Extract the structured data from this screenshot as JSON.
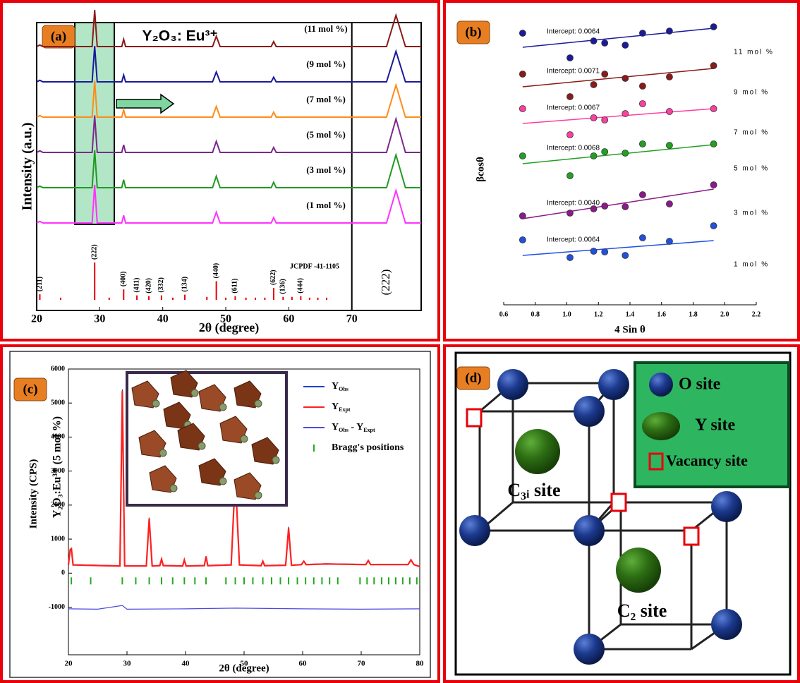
{
  "chart_data": [
    {
      "type": "line",
      "panel_label": "(a)",
      "title": "Y₂O₃: Eu³⁺",
      "xlabel": "2θ (degree)",
      "ylabel": "Intensity (a.u.)",
      "xlim": [
        20,
        81
      ],
      "xticks": [
        20,
        30,
        40,
        50,
        60,
        70
      ],
      "zoom_label": "(222)",
      "x": [
        20,
        20.5,
        21,
        28.8,
        29.2,
        29.6,
        33.5,
        33.8,
        34.1,
        47.9,
        48.5,
        49.1,
        57.2,
        57.6,
        58.0,
        70,
        75.5,
        77,
        78.5,
        81
      ],
      "series": [
        {
          "name": "(1 mol %)",
          "color": "#ff33ff",
          "values": [
            0,
            4,
            0,
            0,
            100,
            0,
            0,
            20,
            0,
            0,
            28,
            0,
            0,
            14,
            0,
            0,
            0,
            85,
            0,
            0
          ]
        },
        {
          "name": "(3 mol %)",
          "color": "#229922",
          "values": [
            0,
            4,
            0,
            0,
            98,
            0,
            0,
            21,
            0,
            0,
            30,
            0,
            0,
            14,
            0,
            0,
            0,
            86,
            0,
            0
          ]
        },
        {
          "name": "(5 mol %)",
          "color": "#7a2a8a",
          "values": [
            0,
            4,
            0,
            0,
            97,
            0,
            0,
            20,
            0,
            0,
            29,
            0,
            0,
            13,
            0,
            0,
            0,
            88,
            0,
            0
          ]
        },
        {
          "name": "(7 mol %)",
          "color": "#ff8c1a",
          "values": [
            0,
            4,
            0,
            0,
            95,
            0,
            0,
            19,
            0,
            0,
            28,
            0,
            0,
            13,
            0,
            0,
            0,
            84,
            0,
            0
          ]
        },
        {
          "name": "(9 mol %)",
          "color": "#1a1a99",
          "values": [
            0,
            4,
            0,
            0,
            94,
            0,
            0,
            18,
            0,
            0,
            26,
            0,
            0,
            12,
            0,
            0,
            0,
            80,
            0,
            0
          ]
        },
        {
          "name": "(11 mol %)",
          "color": "#8b1a1a",
          "values": [
            0,
            4,
            0,
            0,
            96,
            0,
            0,
            19,
            0,
            0,
            27,
            0,
            0,
            13,
            0,
            0,
            0,
            82,
            0,
            0
          ]
        }
      ],
      "reference": {
        "name": "JCPDF -41-1105",
        "color": "#e8000b",
        "x": [
          20.5,
          23.8,
          29.2,
          31.5,
          33.8,
          35.9,
          37.8,
          39.8,
          41.6,
          43.5,
          47.0,
          48.5,
          50.0,
          51.5,
          53.2,
          54.7,
          56.2,
          57.6,
          59.1,
          60.5,
          61.9,
          63.3,
          64.6,
          66.0
        ],
        "values": [
          15,
          6,
          100,
          6,
          28,
          12,
          10,
          12,
          6,
          14,
          8,
          50,
          6,
          10,
          6,
          6,
          6,
          32,
          8,
          8,
          10,
          6,
          6,
          6
        ],
        "labels": [
          "(211)",
          null,
          "(222)",
          null,
          "(400)",
          "(411)",
          "(420)",
          "(332)",
          null,
          "(134)",
          null,
          "(440)",
          null,
          "(611)",
          null,
          null,
          null,
          "(622)",
          "(136)",
          null,
          "(444)",
          null,
          null,
          null
        ]
      }
    },
    {
      "type": "scatter",
      "panel_label": "(b)",
      "xlabel": "4 Sin θ",
      "ylabel": "βcosθ",
      "xlim": [
        0.6,
        2.2
      ],
      "xticks": [
        0.6,
        0.8,
        {
          "value": 1,
          "label": "1.0"
        },
        1.2,
        1.4,
        1.6,
        1.8,
        {
          "value": 2,
          "label": "2.0"
        },
        2.2
      ],
      "x": [
        0.72,
        1.02,
        1.17,
        1.24,
        1.37,
        1.48,
        1.65,
        1.93
      ],
      "fit_x": [
        0.72,
        1.93
      ],
      "series": [
        {
          "name": "11 mol %",
          "color": "#1a1a9b",
          "intercept": "Intercept: 0.0064",
          "values": [
            40.3,
            36.8,
            39.2,
            38.9,
            38.6,
            40.3,
            40.6,
            41.2
          ],
          "fit": [
            38.3,
            41.0
          ]
        },
        {
          "name": "9 mol %",
          "color": "#8b1a1a",
          "intercept": "Intercept: 0.0071",
          "values": [
            34.5,
            31.3,
            33.0,
            34.5,
            33.9,
            32.8,
            34.1,
            35.7
          ],
          "fit": [
            32.7,
            35.3
          ]
        },
        {
          "name": "7 mol %",
          "color": "#ff3fa0",
          "intercept": "Intercept: 0.0067",
          "values": [
            29.6,
            25.9,
            28.3,
            28.0,
            28.9,
            30.3,
            29.2,
            29.6
          ],
          "fit": [
            27.5,
            29.6
          ]
        },
        {
          "name": "5 mol %",
          "color": "#22a022",
          "intercept": "Intercept: 0.0068",
          "values": [
            22.9,
            20.1,
            22.9,
            23.5,
            23.3,
            24.6,
            24.4,
            24.6
          ],
          "fit": [
            21.8,
            24.5
          ]
        },
        {
          "name": "3 mol %",
          "color": "#8b1a8b",
          "intercept": "Intercept: 0.0040",
          "values": [
            14.4,
            14.8,
            15.4,
            15.8,
            15.7,
            17.4,
            16.1,
            18.8
          ],
          "fit": [
            14.0,
            18.2
          ]
        },
        {
          "name": "1 mol %",
          "color": "#2050e0",
          "intercept": "Intercept: 0.0064",
          "values": [
            11.0,
            8.5,
            9.4,
            9.3,
            8.8,
            11.3,
            10.8,
            13.0
          ],
          "fit": [
            8.8,
            10.9
          ]
        }
      ]
    },
    {
      "type": "line",
      "panel_label": "(c)",
      "xlabel": "2θ (degree)",
      "ylabel": "Intensity (CPS)",
      "annotation": "Y₂O₃:Eu³⁺ (5 mol %)",
      "xlim": [
        20,
        80
      ],
      "ylim": [
        -2400,
        6000
      ],
      "xticks": [
        20,
        30,
        40,
        50,
        60,
        70,
        80
      ],
      "yticks": [
        -1000,
        0,
        1000,
        2000,
        3000,
        4000,
        5000,
        6000
      ],
      "series": [
        {
          "name_parts": [
            "Y",
            "Obs"
          ],
          "color": "#1f3fd0",
          "x": [
            20,
            20.3,
            20.5,
            20.8,
            28.8,
            29.2,
            29.6,
            33.3,
            33.8,
            34.3,
            35.6,
            35.9,
            36.2,
            39.5,
            39.8,
            40.1,
            43.2,
            43.5,
            43.8,
            47.8,
            48.5,
            49.2,
            52.9,
            53.2,
            53.5,
            57.1,
            57.6,
            58.1,
            59.8,
            60.2,
            60.6,
            64,
            70.8,
            71.2,
            71.6,
            78,
            78.5,
            79,
            80
          ],
          "values": [
            250,
            700,
            730,
            250,
            220,
            5400,
            220,
            220,
            1630,
            220,
            230,
            420,
            230,
            220,
            400,
            220,
            230,
            500,
            230,
            250,
            2900,
            250,
            230,
            360,
            230,
            240,
            1360,
            240,
            260,
            360,
            260,
            280,
            260,
            380,
            260,
            260,
            400,
            260,
            200
          ]
        },
        {
          "name_parts": [
            "Y",
            "Expt"
          ],
          "color": "#ff2020",
          "x": [
            20,
            20.3,
            20.5,
            20.8,
            28.8,
            29.2,
            29.6,
            33.3,
            33.8,
            34.3,
            35.6,
            35.9,
            36.2,
            39.5,
            39.8,
            40.1,
            43.2,
            43.5,
            43.8,
            47.8,
            48.5,
            49.2,
            52.9,
            53.2,
            53.5,
            57.1,
            57.6,
            58.1,
            59.8,
            60.2,
            60.6,
            64,
            70.8,
            71.2,
            71.6,
            78,
            78.5,
            79,
            80
          ],
          "values": [
            240,
            690,
            720,
            240,
            210,
            5350,
            210,
            210,
            1600,
            210,
            220,
            410,
            220,
            210,
            390,
            210,
            220,
            490,
            220,
            240,
            2850,
            240,
            220,
            350,
            220,
            230,
            1320,
            230,
            250,
            350,
            250,
            270,
            250,
            370,
            250,
            250,
            390,
            250,
            190
          ]
        },
        {
          "name_parts": [
            "Y",
            "Obs",
            " - Y",
            "Expt"
          ],
          "color": "#4a4ae0",
          "x": [
            20,
            25,
            29.2,
            30,
            40,
            48.5,
            60,
            70,
            80
          ],
          "values": [
            -1050,
            -1060,
            -950,
            -1060,
            -1050,
            -1030,
            -1050,
            -1060,
            -1050
          ]
        }
      ],
      "bragg": {
        "name": "Bragg's positions",
        "color": "#22aa22",
        "x": [
          20.5,
          23.8,
          29.2,
          31.5,
          33.8,
          35.9,
          37.8,
          39.8,
          41.6,
          43.5,
          46.9,
          48.5,
          50.0,
          51.5,
          53.2,
          54.7,
          56.2,
          57.6,
          59.1,
          60.5,
          61.9,
          63.3,
          64.6,
          66.0,
          69.8,
          71.0,
          72.2,
          73.5,
          74.7,
          75.9,
          77.1,
          78.3,
          79.5
        ]
      }
    }
  ],
  "diagram": {
    "panel_label": "(d)",
    "legend": [
      "O site",
      "Y site",
      "Vacancy site"
    ],
    "sites": [
      "C₃ᵢ site",
      "C₂ site"
    ]
  }
}
